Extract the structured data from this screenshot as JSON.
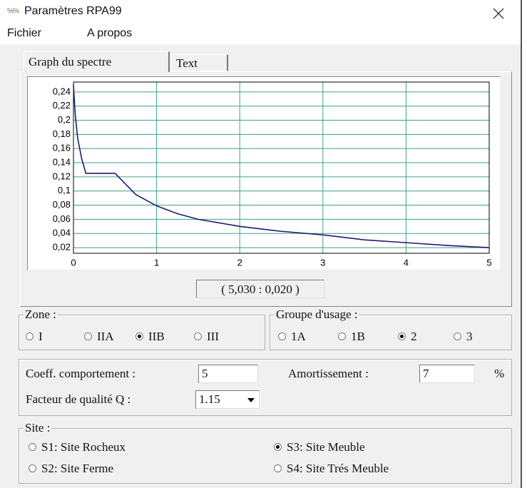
{
  "window": {
    "title": "Paramètres RPA99"
  },
  "menu": [
    "Fichier",
    "A propos"
  ],
  "tabs": [
    "Graph du spectre",
    "Text"
  ],
  "active_tab": 0,
  "chart_data": {
    "type": "line",
    "x": [
      0,
      0.02,
      0.05,
      0.1,
      0.15,
      0.5,
      0.75,
      1,
      1.25,
      1.5,
      2,
      2.5,
      3,
      3.5,
      4,
      4.5,
      5
    ],
    "series": [
      {
        "color": "#1c1c70",
        "values": [
          0.25,
          0.21,
          0.175,
          0.145,
          0.125,
          0.125,
          0.095,
          0.079,
          0.068,
          0.06,
          0.05,
          0.043,
          0.038,
          0.031,
          0.027,
          0.023,
          0.02
        ]
      }
    ],
    "xlim": [
      0,
      5
    ],
    "xticks": [
      0,
      1,
      2,
      3,
      4,
      5
    ],
    "ylim": [
      0.012,
      0.254
    ],
    "yticks": [
      {
        "value": 0.02,
        "label": "0,02"
      },
      {
        "value": 0.04,
        "label": "0,04"
      },
      {
        "value": 0.06,
        "label": "0,06"
      },
      {
        "value": 0.08,
        "label": "0,08"
      },
      {
        "value": 0.1,
        "label": "0,1"
      },
      {
        "value": 0.12,
        "label": "0,12"
      },
      {
        "value": 0.14,
        "label": "0,14"
      },
      {
        "value": 0.16,
        "label": "0,16"
      },
      {
        "value": 0.18,
        "label": "0,18"
      },
      {
        "value": 0.2,
        "label": "0,2"
      },
      {
        "value": 0.22,
        "label": "0,22"
      },
      {
        "value": 0.24,
        "label": "0,24"
      }
    ],
    "grid": true,
    "grid_color": "#3f9f88"
  },
  "cursor_readout": "( 5,030 : 0,020 )",
  "zone": {
    "label": "Zone :",
    "options": [
      "I",
      "IIA",
      "IIB",
      "III"
    ],
    "selected": 2
  },
  "groupe": {
    "label": "Groupe d'usage :",
    "options": [
      "1A",
      "1B",
      "2",
      "3"
    ],
    "selected": 2
  },
  "params": {
    "coeff_label": "Coeff. comportement :",
    "coeff_value": "5",
    "amort_label": "Amortissement :",
    "amort_value": "7",
    "amort_unit": "%",
    "q_label": "Facteur de qualité Q :",
    "q_value": "1.15"
  },
  "site": {
    "label": "Site :",
    "options": [
      "S1: Site Rocheux",
      "S3: Site Meuble",
      "S2: Site Ferme",
      "S4: Site Trés Meuble"
    ],
    "selected": 1
  }
}
